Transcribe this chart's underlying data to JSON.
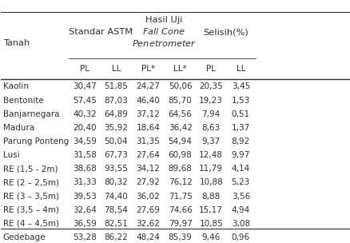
{
  "col_header_row1": [
    "Tanah",
    "Standar ASTM",
    "",
    "Hasil Uji\nFall Cone\nPenetrometer",
    "",
    "Selisih(%)",
    ""
  ],
  "col_header_row2": [
    "",
    "PL",
    "LL",
    "PL*",
    "LL*",
    "PL",
    "LL"
  ],
  "rows": [
    [
      "Kaolin",
      "30,47",
      "51,85",
      "24,27",
      "50,06",
      "20,35",
      "3,45"
    ],
    [
      "Bentonite",
      "57,45",
      "87,03",
      "46,40",
      "85,70",
      "19,23",
      "1,53"
    ],
    [
      "Banjarnegara",
      "40,32",
      "64,89",
      "37,12",
      "64,56",
      "7,94",
      "0,51"
    ],
    [
      "Madura",
      "20,40",
      "35,92",
      "18,64",
      "36,42",
      "8,63",
      "1,37"
    ],
    [
      "Parung Ponteng",
      "34,59",
      "50,04",
      "31,35",
      "54,94",
      "9,37",
      "8,92"
    ],
    [
      "Lusi",
      "31,58",
      "67,73",
      "27,64",
      "60,98",
      "12,48",
      "9,97"
    ],
    [
      "RE (1,5 - 2m)",
      "38,68",
      "93,55",
      "34,12",
      "89,68",
      "11,79",
      "4,14"
    ],
    [
      "RE (2 – 2,5m)",
      "31,33",
      "80,32",
      "27,92",
      "76,12",
      "10,88",
      "5,23"
    ],
    [
      "RE (3 – 3,5m)",
      "39,53",
      "74,40",
      "36,02",
      "71,75",
      "8,88",
      "3,56"
    ],
    [
      "RE (3,5 – 4m)",
      "32,64",
      "78,54",
      "27,69",
      "74,66",
      "15,17",
      "4,94"
    ],
    [
      "RE (4 – 4,5m)",
      "36,59",
      "82,51",
      "32,62",
      "79,97",
      "10,85",
      "3,08"
    ],
    [
      "Gedebage",
      "53,28",
      "86,22",
      "48,24",
      "85,39",
      "9,46",
      "0,96"
    ]
  ],
  "bg_color": "#ffffff",
  "text_color": "#2e2e2e",
  "font_size": 7.5,
  "header_font_size": 8.2
}
